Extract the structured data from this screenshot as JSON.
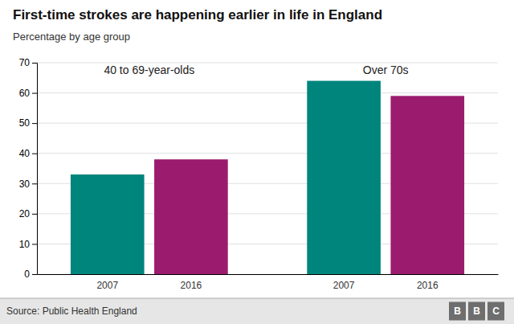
{
  "chart_data": {
    "type": "bar",
    "title": "First-time strokes are happening earlier in life in England",
    "subtitle": "Percentage by age group",
    "categories": [
      "40 to 69-year-olds",
      "Over 70s"
    ],
    "series": [
      {
        "name": "2007",
        "color": "#00857C",
        "values": [
          33,
          64
        ]
      },
      {
        "name": "2016",
        "color": "#9B1B6E",
        "values": [
          38,
          59
        ]
      }
    ],
    "ylim": [
      0,
      70
    ],
    "yticks": [
      0,
      10,
      20,
      30,
      40,
      50,
      60,
      70
    ],
    "grid": true,
    "source": "Source: Public Health England",
    "logo": [
      "B",
      "B",
      "C"
    ]
  }
}
